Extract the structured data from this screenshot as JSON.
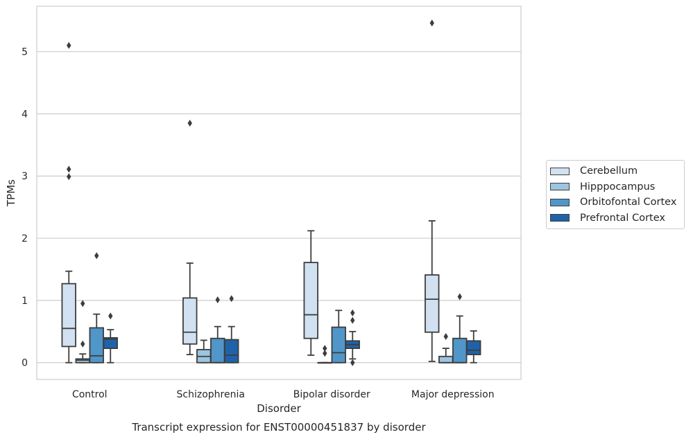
{
  "chart_data": {
    "type": "box",
    "title": "Transcript expression for ENST00000451837 by disorder",
    "xlabel": "Disorder",
    "ylabel": "TPMs",
    "ylim": [
      -0.27,
      5.73
    ],
    "yticks": [
      0,
      1,
      2,
      3,
      4,
      5
    ],
    "grid": "horizontal",
    "legend_position": "right",
    "categories": [
      "Control",
      "Schizophrenia",
      "Bipolar disorder",
      "Major depression"
    ],
    "series": [
      {
        "name": "Cerebellum",
        "color": "#d1e1f1",
        "boxes": [
          {
            "whisker_low": 0.0,
            "q1": 0.26,
            "median": 0.55,
            "q3": 1.27,
            "whisker_high": 1.47,
            "outliers": [
              2.99,
              3.11,
              5.1
            ]
          },
          {
            "whisker_low": 0.13,
            "q1": 0.3,
            "median": 0.49,
            "q3": 1.04,
            "whisker_high": 1.6,
            "outliers": [
              3.85
            ]
          },
          {
            "whisker_low": 0.12,
            "q1": 0.39,
            "median": 0.77,
            "q3": 1.61,
            "whisker_high": 2.12,
            "outliers": []
          },
          {
            "whisker_low": 0.02,
            "q1": 0.49,
            "median": 1.02,
            "q3": 1.41,
            "whisker_high": 2.28,
            "outliers": [
              5.46
            ]
          }
        ]
      },
      {
        "name": "Hipppocampus",
        "color": "#9dc4e0",
        "boxes": [
          {
            "whisker_low": 0.0,
            "q1": 0.0,
            "median": 0.04,
            "q3": 0.06,
            "whisker_high": 0.14,
            "outliers": [
              0.3,
              0.95
            ]
          },
          {
            "whisker_low": 0.0,
            "q1": 0.0,
            "median": 0.1,
            "q3": 0.21,
            "whisker_high": 0.36,
            "outliers": []
          },
          {
            "whisker_low": 0.0,
            "q1": 0.0,
            "median": 0.0,
            "q3": 0.0,
            "whisker_high": 0.0,
            "outliers": [
              0.15,
              0.23
            ]
          },
          {
            "whisker_low": 0.0,
            "q1": 0.0,
            "median": 0.0,
            "q3": 0.1,
            "whisker_high": 0.23,
            "outliers": [
              0.42
            ]
          }
        ]
      },
      {
        "name": "Orbitofontal Cortex",
        "color": "#5096c9",
        "boxes": [
          {
            "whisker_low": 0.0,
            "q1": 0.0,
            "median": 0.11,
            "q3": 0.56,
            "whisker_high": 0.78,
            "outliers": [
              1.72
            ]
          },
          {
            "whisker_low": 0.0,
            "q1": 0.0,
            "median": 0.0,
            "q3": 0.39,
            "whisker_high": 0.58,
            "outliers": [
              1.01
            ]
          },
          {
            "whisker_low": 0.0,
            "q1": 0.0,
            "median": 0.16,
            "q3": 0.57,
            "whisker_high": 0.84,
            "outliers": []
          },
          {
            "whisker_low": 0.0,
            "q1": 0.0,
            "median": 0.0,
            "q3": 0.39,
            "whisker_high": 0.75,
            "outliers": [
              1.06
            ]
          }
        ]
      },
      {
        "name": "Prefrontal Cortex",
        "color": "#1f62a9",
        "boxes": [
          {
            "whisker_low": 0.0,
            "q1": 0.23,
            "median": 0.38,
            "q3": 0.4,
            "whisker_high": 0.53,
            "outliers": [
              0.75
            ]
          },
          {
            "whisker_low": 0.0,
            "q1": 0.0,
            "median": 0.12,
            "q3": 0.37,
            "whisker_high": 0.58,
            "outliers": [
              1.03
            ]
          },
          {
            "whisker_low": 0.06,
            "q1": 0.23,
            "median": 0.29,
            "q3": 0.35,
            "whisker_high": 0.5,
            "outliers": [
              0.0,
              0.68,
              0.8
            ]
          },
          {
            "whisker_low": 0.0,
            "q1": 0.13,
            "median": 0.2,
            "q3": 0.35,
            "whisker_high": 0.51,
            "outliers": []
          }
        ]
      }
    ]
  }
}
